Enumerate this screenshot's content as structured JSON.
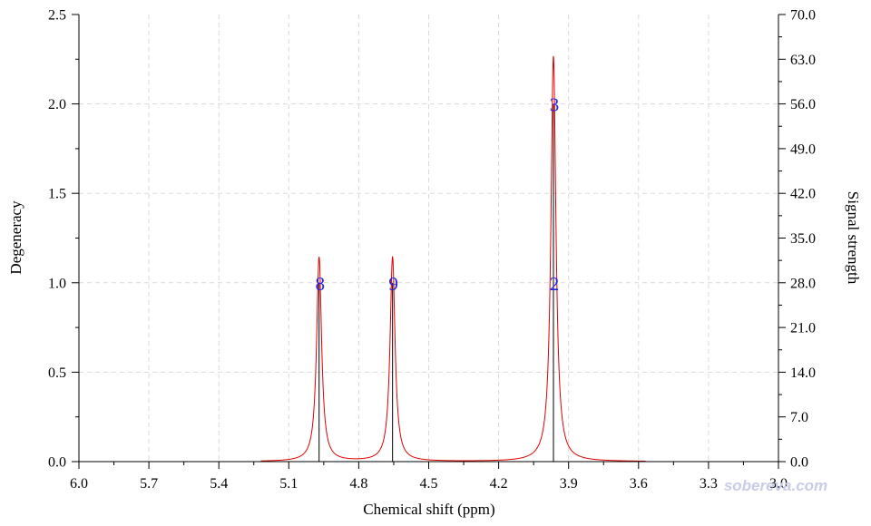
{
  "chart_data": {
    "type": "line",
    "xlabel": "Chemical shift (ppm)",
    "ylabel_left": "Degeneracy",
    "ylabel_right": "Signal strength",
    "xlim": [
      6.0,
      3.0
    ],
    "x_reversed": true,
    "ylim_left": [
      0,
      2.5
    ],
    "ylim_right": [
      0,
      70
    ],
    "x_ticks": [
      "6.0",
      "5.7",
      "5.4",
      "5.1",
      "4.8",
      "4.5",
      "4.2",
      "3.9",
      "3.6",
      "3.3",
      "3.0"
    ],
    "y_left_ticks": [
      "0.0",
      "0.5",
      "1.0",
      "1.5",
      "2.0",
      "2.5"
    ],
    "y_right_ticks": [
      "0.0",
      "7.0",
      "14.0",
      "21.0",
      "28.0",
      "35.0",
      "42.0",
      "49.0",
      "56.0",
      "63.0",
      "70.0"
    ],
    "grid": true,
    "sticks": [
      {
        "shift": 4.97,
        "degeneracy": 1,
        "label": "8"
      },
      {
        "shift": 4.655,
        "degeneracy": 1,
        "label": "9"
      },
      {
        "shift": 3.965,
        "degeneracy": 1,
        "label": "2"
      },
      {
        "shift": 3.965,
        "degeneracy": 2,
        "label": "3"
      }
    ],
    "peaks": [
      {
        "shift": 4.97,
        "signal_strength": 32.0
      },
      {
        "shift": 4.655,
        "signal_strength": 32.0
      },
      {
        "shift": 3.965,
        "signal_strength": 63.5
      }
    ],
    "spectrum_range": [
      5.22,
      3.57
    ],
    "colors": {
      "spectrum": "#e00000",
      "sticks": "#000000",
      "labels": "#2222ee",
      "grid": "#d9d9d9"
    }
  },
  "watermark": "sobereva.com"
}
